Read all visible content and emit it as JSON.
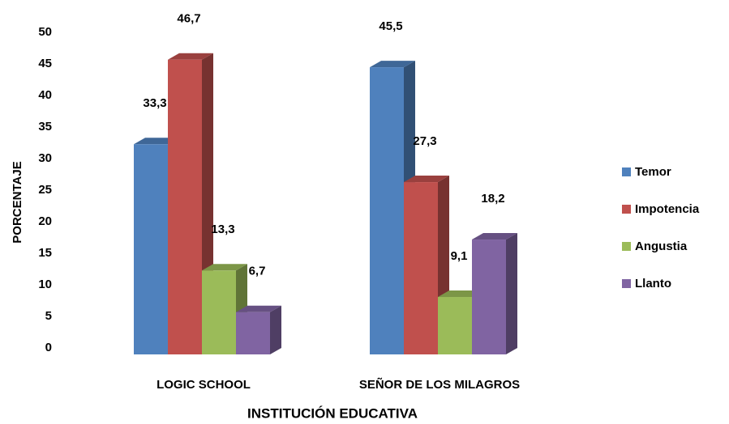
{
  "chart_data": {
    "type": "bar3d",
    "categories": [
      "LOGIC SCHOOL",
      "SEÑOR DE LOS MILAGROS"
    ],
    "series": [
      {
        "name": "Temor",
        "color": "#4f81bd",
        "values": [
          33.3,
          45.5
        ],
        "value_labels": [
          "33,3",
          "45,5"
        ]
      },
      {
        "name": "Impotencia",
        "color": "#c0504d",
        "values": [
          46.7,
          27.3
        ],
        "value_labels": [
          "46,7",
          "27,3"
        ]
      },
      {
        "name": "Angustia",
        "color": "#9bbb59",
        "values": [
          13.3,
          9.1
        ],
        "value_labels": [
          "13,3",
          "9,1"
        ]
      },
      {
        "name": "Llanto",
        "color": "#8064a2",
        "values": [
          6.7,
          18.2
        ],
        "value_labels": [
          "6,7",
          "18,2"
        ]
      }
    ],
    "ylabel": "PORCENTAJE",
    "xlabel": "INSTITUCIÓN EDUCATIVA",
    "ylim": [
      0,
      50
    ],
    "yticks": [
      0,
      5,
      10,
      15,
      20,
      25,
      30,
      35,
      40,
      45,
      50
    ],
    "legend": "right"
  }
}
